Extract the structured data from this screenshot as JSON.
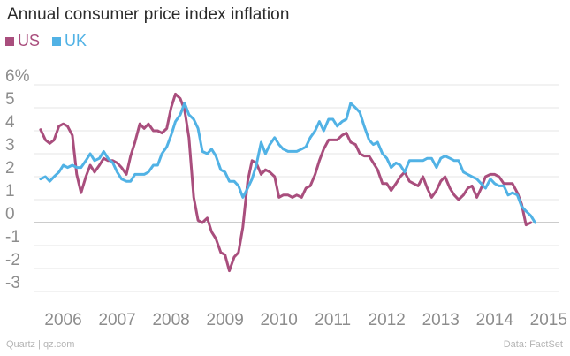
{
  "chart_data": {
    "type": "line",
    "title": "Annual consumer price index inflation",
    "x_ticks": [
      "2006",
      "2007",
      "2008",
      "2009",
      "2010",
      "2011",
      "2012",
      "2013",
      "2014",
      "2015"
    ],
    "y_ticks": [
      "6%",
      "5",
      "4",
      "3",
      "2",
      "1",
      "0",
      "-1",
      "-2",
      "-3"
    ],
    "ylim": [
      -3,
      6
    ],
    "xlim": [
      2005.45,
      2015.2
    ],
    "series": [
      {
        "name": "US",
        "color": "#a94e7d",
        "points": [
          [
            2005.58,
            4.05
          ],
          [
            2005.67,
            3.6
          ],
          [
            2005.75,
            3.45
          ],
          [
            2005.83,
            3.6
          ],
          [
            2005.92,
            4.2
          ],
          [
            2006.0,
            4.3
          ],
          [
            2006.08,
            4.2
          ],
          [
            2006.17,
            3.8
          ],
          [
            2006.25,
            2.1
          ],
          [
            2006.33,
            1.3
          ],
          [
            2006.42,
            2.0
          ],
          [
            2006.5,
            2.5
          ],
          [
            2006.58,
            2.2
          ],
          [
            2006.67,
            2.5
          ],
          [
            2006.75,
            2.8
          ],
          [
            2006.83,
            2.7
          ],
          [
            2006.92,
            2.7
          ],
          [
            2007.0,
            2.6
          ],
          [
            2007.08,
            2.4
          ],
          [
            2007.17,
            2.1
          ],
          [
            2007.25,
            2.9
          ],
          [
            2007.33,
            3.5
          ],
          [
            2007.42,
            4.3
          ],
          [
            2007.5,
            4.1
          ],
          [
            2007.58,
            4.3
          ],
          [
            2007.67,
            4.0
          ],
          [
            2007.75,
            4.0
          ],
          [
            2007.83,
            3.9
          ],
          [
            2007.92,
            4.1
          ],
          [
            2008.0,
            5.0
          ],
          [
            2008.08,
            5.6
          ],
          [
            2008.17,
            5.4
          ],
          [
            2008.25,
            4.9
          ],
          [
            2008.33,
            3.7
          ],
          [
            2008.42,
            1.1
          ],
          [
            2008.5,
            0.1
          ],
          [
            2008.58,
            0.0
          ],
          [
            2008.67,
            0.2
          ],
          [
            2008.75,
            -0.4
          ],
          [
            2008.83,
            -0.7
          ],
          [
            2008.92,
            -1.3
          ],
          [
            2009.0,
            -1.4
          ],
          [
            2009.08,
            -2.1
          ],
          [
            2009.17,
            -1.5
          ],
          [
            2009.25,
            -1.3
          ],
          [
            2009.33,
            -0.2
          ],
          [
            2009.42,
            1.8
          ],
          [
            2009.5,
            2.7
          ],
          [
            2009.58,
            2.6
          ],
          [
            2009.67,
            2.1
          ],
          [
            2009.75,
            2.3
          ],
          [
            2009.83,
            2.2
          ],
          [
            2009.92,
            2.0
          ],
          [
            2010.0,
            1.1
          ],
          [
            2010.08,
            1.2
          ],
          [
            2010.17,
            1.2
          ],
          [
            2010.25,
            1.1
          ],
          [
            2010.33,
            1.2
          ],
          [
            2010.42,
            1.1
          ],
          [
            2010.5,
            1.5
          ],
          [
            2010.58,
            1.6
          ],
          [
            2010.67,
            2.1
          ],
          [
            2010.75,
            2.7
          ],
          [
            2010.83,
            3.2
          ],
          [
            2010.92,
            3.6
          ],
          [
            2011.0,
            3.6
          ],
          [
            2011.08,
            3.6
          ],
          [
            2011.17,
            3.8
          ],
          [
            2011.25,
            3.9
          ],
          [
            2011.33,
            3.5
          ],
          [
            2011.42,
            3.4
          ],
          [
            2011.5,
            3.0
          ],
          [
            2011.58,
            2.9
          ],
          [
            2011.67,
            2.9
          ],
          [
            2011.75,
            2.6
          ],
          [
            2011.83,
            2.3
          ],
          [
            2011.92,
            1.7
          ],
          [
            2012.0,
            1.7
          ],
          [
            2012.08,
            1.4
          ],
          [
            2012.17,
            1.7
          ],
          [
            2012.25,
            2.0
          ],
          [
            2012.33,
            2.2
          ],
          [
            2012.42,
            1.8
          ],
          [
            2012.5,
            1.7
          ],
          [
            2012.58,
            1.6
          ],
          [
            2012.67,
            2.0
          ],
          [
            2012.75,
            1.5
          ],
          [
            2012.83,
            1.1
          ],
          [
            2012.92,
            1.4
          ],
          [
            2013.0,
            1.8
          ],
          [
            2013.08,
            2.0
          ],
          [
            2013.17,
            1.5
          ],
          [
            2013.25,
            1.2
          ],
          [
            2013.33,
            1.0
          ],
          [
            2013.42,
            1.2
          ],
          [
            2013.5,
            1.5
          ],
          [
            2013.58,
            1.6
          ],
          [
            2013.67,
            1.1
          ],
          [
            2013.75,
            1.5
          ],
          [
            2013.83,
            2.0
          ],
          [
            2013.92,
            2.1
          ],
          [
            2014.0,
            2.1
          ],
          [
            2014.08,
            2.0
          ],
          [
            2014.17,
            1.7
          ],
          [
            2014.25,
            1.7
          ],
          [
            2014.33,
            1.7
          ],
          [
            2014.42,
            1.3
          ],
          [
            2014.5,
            0.8
          ],
          [
            2014.58,
            -0.1
          ],
          [
            2014.67,
            0.0
          ]
        ]
      },
      {
        "name": "UK",
        "color": "#51b2e5",
        "points": [
          [
            2005.58,
            1.9
          ],
          [
            2005.67,
            2.0
          ],
          [
            2005.75,
            1.8
          ],
          [
            2005.83,
            2.0
          ],
          [
            2005.92,
            2.2
          ],
          [
            2006.0,
            2.5
          ],
          [
            2006.08,
            2.4
          ],
          [
            2006.17,
            2.5
          ],
          [
            2006.25,
            2.4
          ],
          [
            2006.33,
            2.4
          ],
          [
            2006.42,
            2.7
          ],
          [
            2006.5,
            3.0
          ],
          [
            2006.58,
            2.7
          ],
          [
            2006.67,
            2.8
          ],
          [
            2006.75,
            3.1
          ],
          [
            2006.83,
            2.8
          ],
          [
            2006.92,
            2.6
          ],
          [
            2007.0,
            2.2
          ],
          [
            2007.08,
            1.9
          ],
          [
            2007.17,
            1.8
          ],
          [
            2007.25,
            1.8
          ],
          [
            2007.33,
            2.1
          ],
          [
            2007.42,
            2.1
          ],
          [
            2007.5,
            2.1
          ],
          [
            2007.58,
            2.2
          ],
          [
            2007.67,
            2.5
          ],
          [
            2007.75,
            2.5
          ],
          [
            2007.83,
            3.0
          ],
          [
            2007.92,
            3.3
          ],
          [
            2008.0,
            3.8
          ],
          [
            2008.08,
            4.4
          ],
          [
            2008.17,
            4.7
          ],
          [
            2008.25,
            5.2
          ],
          [
            2008.33,
            4.7
          ],
          [
            2008.42,
            4.5
          ],
          [
            2008.5,
            4.1
          ],
          [
            2008.58,
            3.1
          ],
          [
            2008.67,
            3.0
          ],
          [
            2008.75,
            3.2
          ],
          [
            2008.83,
            2.9
          ],
          [
            2008.92,
            2.3
          ],
          [
            2009.0,
            2.2
          ],
          [
            2009.08,
            1.8
          ],
          [
            2009.17,
            1.8
          ],
          [
            2009.25,
            1.6
          ],
          [
            2009.33,
            1.1
          ],
          [
            2009.42,
            1.5
          ],
          [
            2009.5,
            1.9
          ],
          [
            2009.58,
            2.5
          ],
          [
            2009.67,
            3.5
          ],
          [
            2009.75,
            3.0
          ],
          [
            2009.83,
            3.4
          ],
          [
            2009.92,
            3.7
          ],
          [
            2010.0,
            3.4
          ],
          [
            2010.08,
            3.2
          ],
          [
            2010.17,
            3.1
          ],
          [
            2010.25,
            3.1
          ],
          [
            2010.33,
            3.1
          ],
          [
            2010.42,
            3.2
          ],
          [
            2010.5,
            3.3
          ],
          [
            2010.58,
            3.7
          ],
          [
            2010.67,
            4.0
          ],
          [
            2010.75,
            4.4
          ],
          [
            2010.83,
            4.0
          ],
          [
            2010.92,
            4.5
          ],
          [
            2011.0,
            4.5
          ],
          [
            2011.08,
            4.2
          ],
          [
            2011.17,
            4.4
          ],
          [
            2011.25,
            4.5
          ],
          [
            2011.33,
            5.2
          ],
          [
            2011.42,
            5.0
          ],
          [
            2011.5,
            4.8
          ],
          [
            2011.58,
            4.2
          ],
          [
            2011.67,
            3.6
          ],
          [
            2011.75,
            3.4
          ],
          [
            2011.83,
            3.5
          ],
          [
            2011.92,
            3.0
          ],
          [
            2012.0,
            2.8
          ],
          [
            2012.08,
            2.4
          ],
          [
            2012.17,
            2.6
          ],
          [
            2012.25,
            2.5
          ],
          [
            2012.33,
            2.2
          ],
          [
            2012.42,
            2.7
          ],
          [
            2012.5,
            2.7
          ],
          [
            2012.58,
            2.7
          ],
          [
            2012.67,
            2.7
          ],
          [
            2012.75,
            2.8
          ],
          [
            2012.83,
            2.8
          ],
          [
            2012.92,
            2.4
          ],
          [
            2013.0,
            2.8
          ],
          [
            2013.08,
            2.9
          ],
          [
            2013.17,
            2.8
          ],
          [
            2013.25,
            2.7
          ],
          [
            2013.33,
            2.7
          ],
          [
            2013.42,
            2.2
          ],
          [
            2013.5,
            2.1
          ],
          [
            2013.58,
            2.0
          ],
          [
            2013.67,
            1.9
          ],
          [
            2013.75,
            1.7
          ],
          [
            2013.83,
            1.5
          ],
          [
            2013.92,
            1.9
          ],
          [
            2014.0,
            1.7
          ],
          [
            2014.08,
            1.6
          ],
          [
            2014.17,
            1.6
          ],
          [
            2014.25,
            1.2
          ],
          [
            2014.33,
            1.3
          ],
          [
            2014.42,
            1.2
          ],
          [
            2014.5,
            0.7
          ],
          [
            2014.58,
            0.5
          ],
          [
            2014.67,
            0.3
          ],
          [
            2014.75,
            0.0
          ]
        ]
      }
    ]
  },
  "header": {
    "title": "Annual consumer price index inflation"
  },
  "legend": [
    {
      "label": "US",
      "color": "#a94e7d"
    },
    {
      "label": "UK",
      "color": "#51b2e5"
    }
  ],
  "footer": {
    "source_left": "Quartz | qz.com",
    "source_right": "Data: FactSet"
  }
}
